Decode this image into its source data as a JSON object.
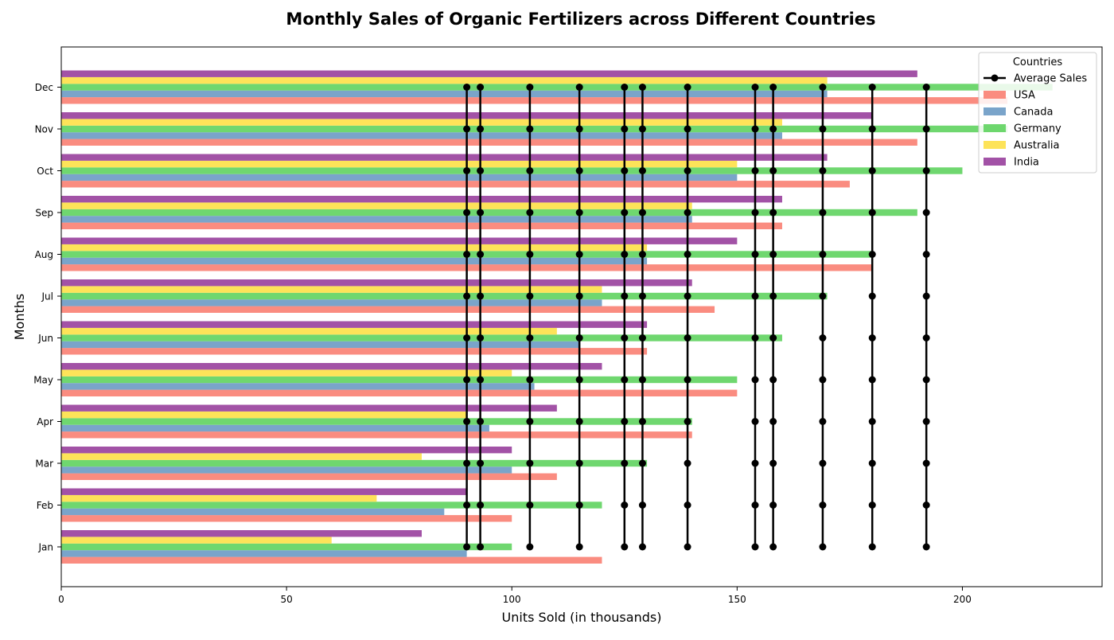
{
  "chart_data": {
    "type": "bar",
    "orientation": "horizontal",
    "title": "Monthly Sales of Organic Fertilizers across Different Countries",
    "xlabel": "Units Sold (in thousands)",
    "ylabel": "Months",
    "xlim": [
      0,
      231
    ],
    "xticks": [
      0,
      50,
      100,
      150,
      200
    ],
    "grid": false,
    "categories": [
      "Jan",
      "Feb",
      "Mar",
      "Apr",
      "May",
      "Jun",
      "Jul",
      "Aug",
      "Sep",
      "Oct",
      "Nov",
      "Dec"
    ],
    "series": [
      {
        "name": "USA",
        "color": "#fa8072",
        "values": [
          120,
          100,
          110,
          140,
          150,
          130,
          145,
          180,
          160,
          175,
          190,
          210
        ]
      },
      {
        "name": "Canada",
        "color": "#6b9ac4",
        "values": [
          90,
          85,
          100,
          95,
          105,
          115,
          120,
          130,
          140,
          150,
          160,
          170
        ]
      },
      {
        "name": "Germany",
        "color": "#5fd35f",
        "values": [
          100,
          120,
          130,
          140,
          150,
          160,
          170,
          180,
          190,
          200,
          210,
          220
        ]
      },
      {
        "name": "Australia",
        "color": "#fde047",
        "values": [
          60,
          70,
          80,
          90,
          100,
          110,
          120,
          130,
          140,
          150,
          160,
          170
        ]
      },
      {
        "name": "India",
        "color": "#983f9c",
        "values": [
          80,
          90,
          100,
          110,
          120,
          130,
          140,
          150,
          160,
          170,
          180,
          190
        ]
      }
    ],
    "average_line": {
      "name": "Average Sales",
      "color": "#000000",
      "x_values": [
        90,
        93,
        104,
        115,
        125,
        129,
        139,
        154,
        158,
        169,
        180,
        192
      ]
    },
    "legend": {
      "title": "Countries",
      "placement": "top-right"
    }
  }
}
